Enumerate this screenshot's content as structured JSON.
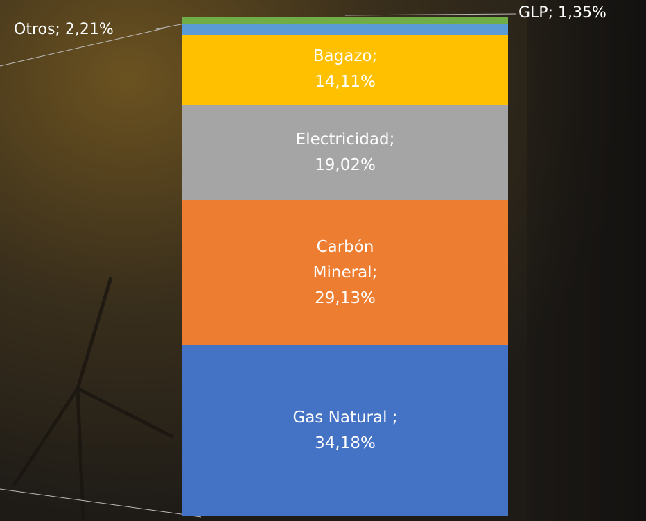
{
  "chart_data": {
    "type": "stacked-bar",
    "series": [
      {
        "name": "Gas Natural ;",
        "color": "#4472c4",
        "values": [
          34.18
        ],
        "value_labels": [
          "34,18%"
        ]
      },
      {
        "name": "Carbón Mineral;",
        "color": "#ed7d31",
        "values": [
          29.13
        ],
        "value_labels": [
          "29,13%"
        ]
      },
      {
        "name": "Electricidad;",
        "color": "#a5a5a5",
        "values": [
          19.02
        ],
        "value_labels": [
          "19,02%"
        ]
      },
      {
        "name": "Bagazo;",
        "color": "#ffc000",
        "values": [
          14.11
        ],
        "value_labels": [
          "14,11%"
        ]
      },
      {
        "name": "Otros;",
        "color": "#5b9bd5",
        "values": [
          2.21
        ],
        "value_labels": [
          "2,21%"
        ]
      },
      {
        "name": "GLP;",
        "color": "#70ad47",
        "values": [
          1.35
        ],
        "value_labels": [
          "1,35%"
        ]
      }
    ]
  }
}
